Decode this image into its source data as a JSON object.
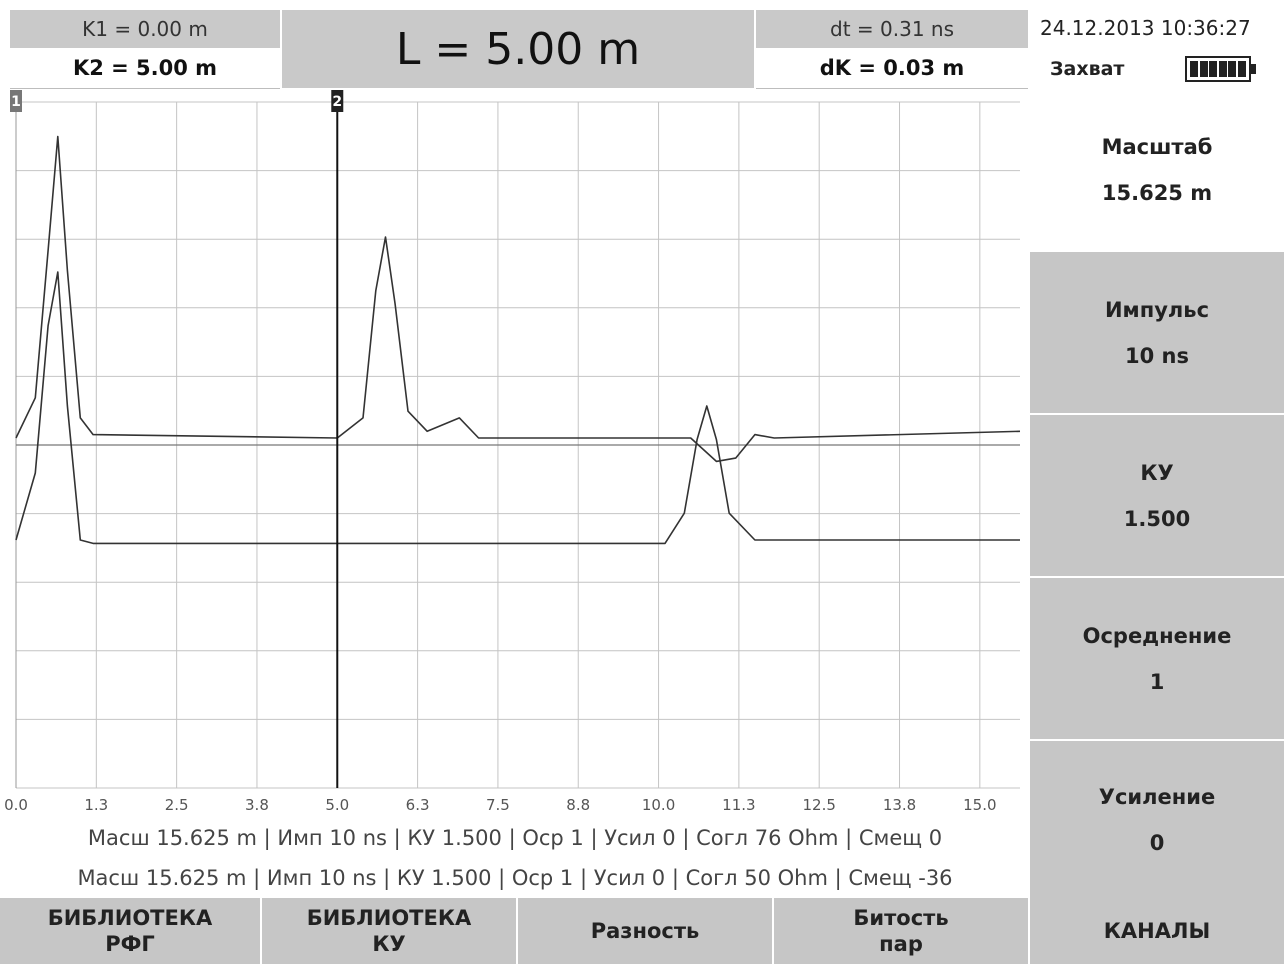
{
  "header": {
    "k1": "K1 = 0.00 m",
    "k2": "K2 = 5.00 m",
    "length": "L = 5.00 m",
    "dt": "dt = 0.31 ns",
    "dk": "dK = 0.03 m",
    "datetime": "24.12.2013 10:36:27",
    "mode": "Захват",
    "battery_level": 1.0
  },
  "sidebar": {
    "items": [
      {
        "label": "Масштаб",
        "value": "15.625 m"
      },
      {
        "label": "Импульс",
        "value": "10 ns"
      },
      {
        "label": "КУ",
        "value": "1.500"
      },
      {
        "label": "Осреднение",
        "value": "1"
      },
      {
        "label": "Усиление",
        "value": "0"
      }
    ]
  },
  "status": {
    "line1": "Масш 15.625 m | Имп 10 ns | КУ 1.500 | Оср 1 | Усил 0 | Согл 76 Ohm | Смещ 0",
    "line2": "Масш 15.625 m | Имп 10 ns | КУ 1.500 | Оср 1 | Усил 0 | Согл 50 Ohm | Смещ -36"
  },
  "buttons": [
    {
      "label": "БИБЛИОТЕКА\nРФГ"
    },
    {
      "label": "БИБЛИОТЕКА\nКУ"
    },
    {
      "label": "Разность"
    },
    {
      "label": "Битость\nпар"
    },
    {
      "label": "КАНАЛЫ"
    }
  ],
  "chart_data": {
    "type": "line",
    "xlim": [
      0,
      15.625
    ],
    "x_ticks": [
      "0.0",
      "1.3",
      "2.5",
      "3.8",
      "5.0",
      "6.3",
      "7.5",
      "8.8",
      "10.0",
      "11.3",
      "12.5",
      "13.8",
      "15.0"
    ],
    "cursors": [
      {
        "label": "1",
        "x": 0.0
      },
      {
        "label": "2",
        "x": 5.0
      }
    ],
    "grid": true,
    "series": [
      {
        "x": [
          0.0,
          0.3,
          0.5,
          0.65,
          0.8,
          1.0,
          1.2,
          5.0,
          5.4,
          5.6,
          5.75,
          5.9,
          6.1,
          6.4,
          6.9,
          7.2,
          10.5,
          10.9,
          11.2,
          11.5,
          11.8,
          15.625
        ],
        "y": [
          0.0,
          0.6,
          2.8,
          4.5,
          2.5,
          0.3,
          0.05,
          0.0,
          0.3,
          2.2,
          3.0,
          2.0,
          0.4,
          0.1,
          0.3,
          0.0,
          0.0,
          -0.35,
          -0.3,
          0.05,
          0.0,
          0.1
        ]
      },
      {
        "x": [
          0.0,
          0.3,
          0.5,
          0.65,
          0.8,
          1.0,
          1.2,
          10.1,
          10.4,
          10.6,
          10.75,
          10.9,
          11.1,
          11.5,
          12.5,
          15.625
        ],
        "y": [
          0.0,
          1.0,
          3.2,
          4.0,
          2.0,
          0.0,
          -0.05,
          -0.05,
          0.4,
          1.5,
          2.0,
          1.5,
          0.4,
          0.0,
          0.0,
          0.0
        ]
      }
    ]
  }
}
